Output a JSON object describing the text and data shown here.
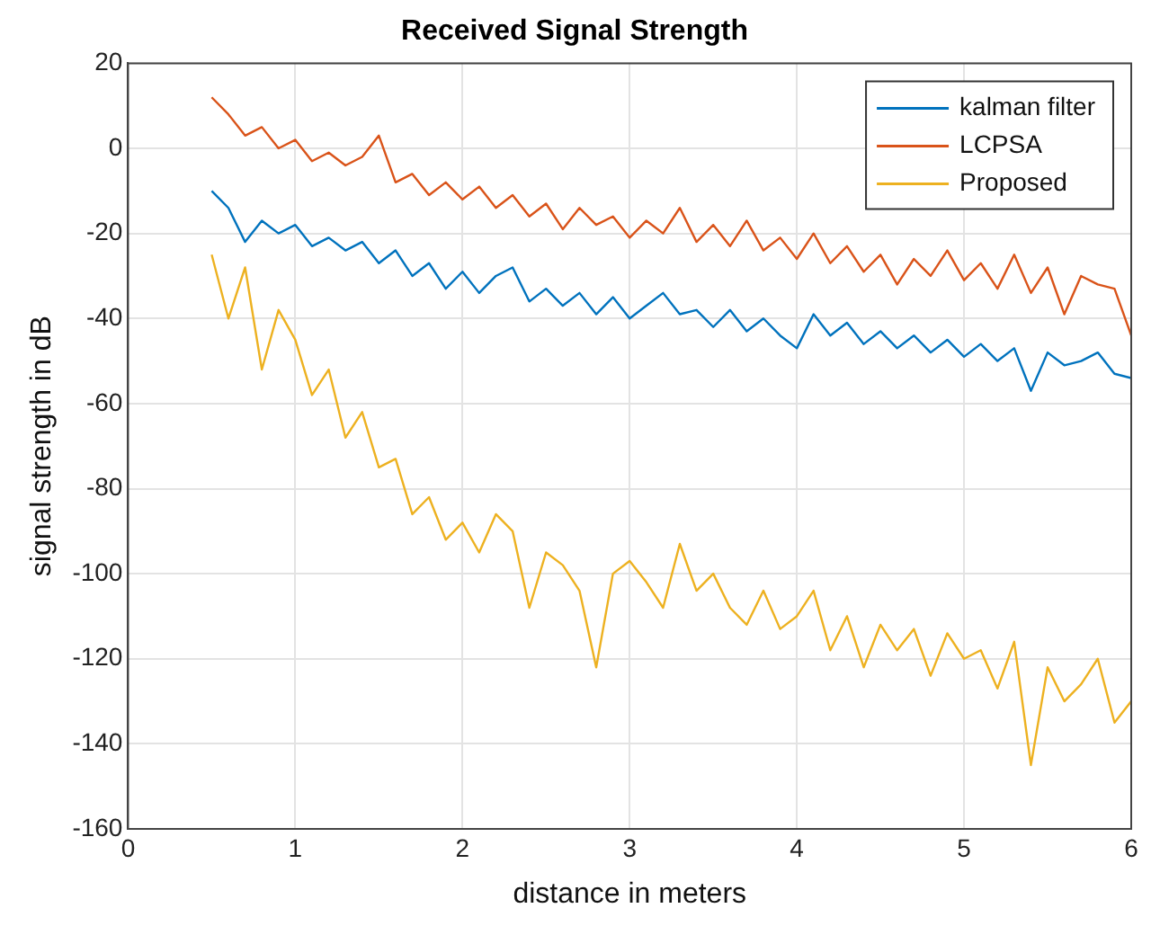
{
  "chart_data": {
    "type": "line",
    "title": "Received Signal Strength",
    "xlabel": "distance in meters",
    "ylabel": "signal strength in dB",
    "x": [
      0.5,
      0.6,
      0.7,
      0.8,
      0.9,
      1.0,
      1.1,
      1.2,
      1.3,
      1.4,
      1.5,
      1.6,
      1.7,
      1.8,
      1.9,
      2.0,
      2.1,
      2.2,
      2.3,
      2.4,
      2.5,
      2.6,
      2.7,
      2.8,
      2.9,
      3.0,
      3.1,
      3.2,
      3.3,
      3.4,
      3.5,
      3.6,
      3.7,
      3.8,
      3.9,
      4.0,
      4.1,
      4.2,
      4.3,
      4.4,
      4.5,
      4.6,
      4.7,
      4.8,
      4.9,
      5.0,
      5.1,
      5.2,
      5.3,
      5.4,
      5.5,
      5.6,
      5.7,
      5.8,
      5.9,
      6.0
    ],
    "series": [
      {
        "name": "kalman filter",
        "color": "#0072bd",
        "values": [
          -10,
          -14,
          -22,
          -17,
          -20,
          -18,
          -23,
          -21,
          -24,
          -22,
          -27,
          -24,
          -30,
          -27,
          -33,
          -29,
          -34,
          -30,
          -28,
          -36,
          -33,
          -37,
          -34,
          -39,
          -35,
          -40,
          -37,
          -34,
          -39,
          -38,
          -42,
          -38,
          -43,
          -40,
          -44,
          -47,
          -39,
          -44,
          -41,
          -46,
          -43,
          -47,
          -44,
          -48,
          -45,
          -49,
          -46,
          -50,
          -47,
          -57,
          -48,
          -51,
          -50,
          -48,
          -53,
          -54
        ]
      },
      {
        "name": "LCPSA",
        "color": "#d95319",
        "values": [
          12,
          8,
          3,
          5,
          0,
          2,
          -3,
          -1,
          -4,
          -2,
          3,
          -8,
          -6,
          -11,
          -8,
          -12,
          -9,
          -14,
          -11,
          -16,
          -13,
          -19,
          -14,
          -18,
          -16,
          -21,
          -17,
          -20,
          -14,
          -22,
          -18,
          -23,
          -17,
          -24,
          -21,
          -26,
          -20,
          -27,
          -23,
          -29,
          -25,
          -32,
          -26,
          -30,
          -24,
          -31,
          -27,
          -33,
          -25,
          -34,
          -28,
          -39,
          -30,
          -32,
          -33,
          -44
        ]
      },
      {
        "name": "Proposed",
        "color": "#edb120",
        "values": [
          -25,
          -40,
          -28,
          -52,
          -38,
          -45,
          -58,
          -52,
          -68,
          -62,
          -75,
          -73,
          -86,
          -82,
          -92,
          -88,
          -95,
          -86,
          -90,
          -108,
          -95,
          -98,
          -104,
          -122,
          -100,
          -97,
          -102,
          -108,
          -93,
          -104,
          -100,
          -108,
          -112,
          -104,
          -113,
          -110,
          -104,
          -118,
          -110,
          -122,
          -112,
          -118,
          -113,
          -124,
          -114,
          -120,
          -118,
          -127,
          -116,
          -145,
          -122,
          -130,
          -126,
          -120,
          -135,
          -130
        ]
      }
    ],
    "xlim": [
      0,
      6
    ],
    "xticks": [
      0,
      1,
      2,
      3,
      4,
      5,
      6
    ],
    "ylim": [
      -160,
      20
    ],
    "yticks": [
      -160,
      -140,
      -120,
      -100,
      -80,
      -60,
      -40,
      -20,
      0,
      20
    ],
    "grid": true,
    "legend": "top right",
    "marker": "none",
    "line_style": "solid"
  }
}
